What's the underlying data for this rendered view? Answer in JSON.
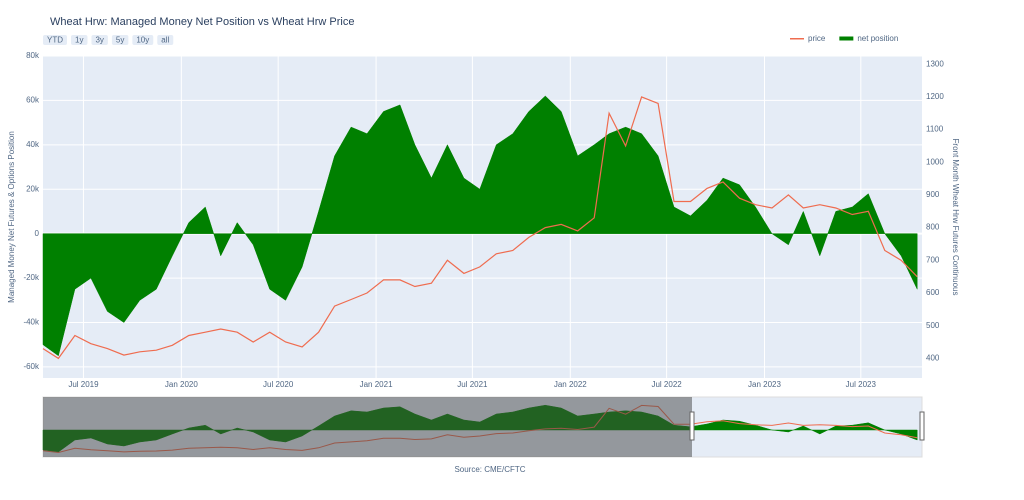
{
  "chart_data": {
    "type": "area-line",
    "title": "Wheat Hrw: Managed Money Net Position vs Wheat Hrw Price",
    "ylabel": "Managed Money Net Futures & Options Position",
    "y2label": "Front Month Wheat Hrw Futures Continuous",
    "source": "Source: CME/CFTC",
    "buttons": [
      "YTD",
      "1y",
      "3y",
      "5y",
      "10y",
      "all"
    ],
    "x": [
      "2019-04-16",
      "2019-05-15",
      "2019-06-15",
      "2019-07-15",
      "2019-08-15",
      "2019-09-15",
      "2019-10-15",
      "2019-11-15",
      "2019-12-15",
      "2020-01-15",
      "2020-02-15",
      "2020-03-15",
      "2020-04-15",
      "2020-05-15",
      "2020-06-15",
      "2020-07-15",
      "2020-08-15",
      "2020-09-15",
      "2020-10-15",
      "2020-11-15",
      "2020-12-15",
      "2021-01-15",
      "2021-02-15",
      "2021-03-15",
      "2021-04-15",
      "2021-05-15",
      "2021-06-15",
      "2021-07-15",
      "2021-08-15",
      "2021-09-15",
      "2021-10-15",
      "2021-11-15",
      "2021-12-15",
      "2022-01-15",
      "2022-02-15",
      "2022-03-15",
      "2022-04-15",
      "2022-05-15",
      "2022-06-15",
      "2022-07-15",
      "2022-08-15",
      "2022-09-15",
      "2022-10-15",
      "2022-11-15",
      "2022-12-15",
      "2023-01-15",
      "2023-02-15",
      "2023-03-15",
      "2023-04-15",
      "2023-05-15",
      "2023-06-15",
      "2023-07-15",
      "2023-08-15",
      "2023-09-15",
      "2023-10-15"
    ],
    "series": [
      {
        "name": "net position",
        "color": "#008000",
        "values": [
          -50000,
          -55000,
          -25000,
          -20000,
          -35000,
          -40000,
          -30000,
          -25000,
          -10000,
          5000,
          12000,
          -10000,
          5000,
          -5000,
          -25000,
          -30000,
          -15000,
          10000,
          35000,
          48000,
          45000,
          55000,
          58000,
          40000,
          25000,
          40000,
          25000,
          20000,
          40000,
          45000,
          55000,
          62000,
          55000,
          35000,
          40000,
          45000,
          48000,
          45000,
          35000,
          12000,
          8000,
          15000,
          25000,
          22000,
          12000,
          0,
          -5000,
          10000,
          -10000,
          10000,
          12000,
          18000,
          0,
          -10000,
          -25000
        ]
      },
      {
        "name": "price",
        "color": "#ef6c4f",
        "axis": "y2",
        "values": [
          430,
          400,
          470,
          445,
          430,
          410,
          420,
          425,
          440,
          470,
          480,
          490,
          480,
          450,
          480,
          450,
          435,
          480,
          560,
          580,
          600,
          640,
          640,
          620,
          630,
          700,
          660,
          680,
          720,
          730,
          770,
          800,
          810,
          790,
          830,
          1150,
          1050,
          1200,
          1180,
          880,
          880,
          920,
          940,
          890,
          870,
          860,
          900,
          860,
          870,
          860,
          840,
          850,
          730,
          700,
          650
        ]
      }
    ],
    "xlim": [
      "2019-04-16",
      "2023-10-24"
    ],
    "xticks": [
      {
        "value": "2019-07-01",
        "label": "Jul 2019"
      },
      {
        "value": "2020-01-01",
        "label": "Jan 2020"
      },
      {
        "value": "2020-07-01",
        "label": "Jul 2020"
      },
      {
        "value": "2021-01-01",
        "label": "Jan 2021"
      },
      {
        "value": "2021-07-01",
        "label": "Jul 2021"
      },
      {
        "value": "2022-01-01",
        "label": "Jan 2022"
      },
      {
        "value": "2022-07-01",
        "label": "Jul 2022"
      },
      {
        "value": "2023-01-01",
        "label": "Jan 2023"
      },
      {
        "value": "2023-07-01",
        "label": "Jul 2023"
      }
    ],
    "ylim": [
      -65000,
      80000
    ],
    "yticks": [
      {
        "value": -60000,
        "label": "-60k"
      },
      {
        "value": -40000,
        "label": "-40k"
      },
      {
        "value": -20000,
        "label": "-20k"
      },
      0,
      {
        "value": 20000,
        "label": "20k"
      },
      {
        "value": 40000,
        "label": "40k"
      },
      {
        "value": 60000,
        "label": "60k"
      },
      {
        "value": 80000,
        "label": "80k"
      }
    ],
    "y2lim": [
      340,
      1325
    ],
    "y2ticks": [
      400,
      500,
      600,
      700,
      800,
      900,
      1000,
      1100,
      1200,
      1300
    ],
    "grid": true,
    "legend": "top-right"
  }
}
